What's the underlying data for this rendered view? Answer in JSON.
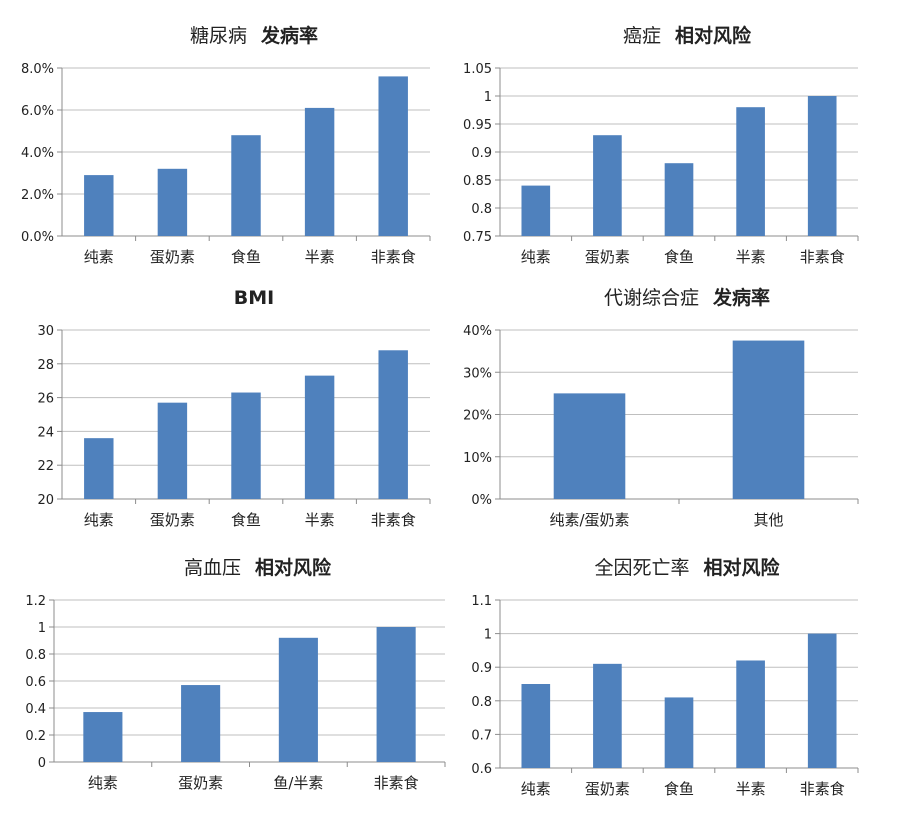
{
  "chart_data": [
    {
      "type": "bar",
      "title_main": "糖尿病",
      "title_emph": "发病率",
      "categories": [
        "纯素",
        "蛋奶素",
        "食鱼",
        "半素",
        "非素食"
      ],
      "values": [
        2.9,
        3.2,
        4.8,
        6.1,
        7.6
      ],
      "ylim": [
        0,
        8
      ],
      "yticks": [
        "0.0%",
        "2.0%",
        "4.0%",
        "6.0%",
        "8.0%"
      ],
      "grid": true
    },
    {
      "type": "bar",
      "title_main": "癌症",
      "title_emph": "相对风险",
      "categories": [
        "纯素",
        "蛋奶素",
        "食鱼",
        "半素",
        "非素食"
      ],
      "values": [
        0.84,
        0.93,
        0.88,
        0.98,
        1.0
      ],
      "ylim": [
        0.75,
        1.05
      ],
      "yticks": [
        "0.75",
        "0.8",
        "0.85",
        "0.9",
        "0.95",
        "1",
        "1.05"
      ],
      "grid": true
    },
    {
      "type": "bar",
      "title_main": "",
      "title_emph": "BMI",
      "categories": [
        "纯素",
        "蛋奶素",
        "食鱼",
        "半素",
        "非素食"
      ],
      "values": [
        23.6,
        25.7,
        26.3,
        27.3,
        28.8
      ],
      "ylim": [
        20,
        30
      ],
      "yticks": [
        "20",
        "22",
        "24",
        "26",
        "28",
        "30"
      ],
      "grid": true
    },
    {
      "type": "bar",
      "title_main": "代谢综合症",
      "title_emph": "发病率",
      "categories": [
        "纯素/蛋奶素",
        "其他"
      ],
      "values": [
        25,
        37.5
      ],
      "ylim": [
        0,
        40
      ],
      "yticks": [
        "0%",
        "10%",
        "20%",
        "30%",
        "40%"
      ],
      "grid": true
    },
    {
      "type": "bar",
      "title_main": "高血压",
      "title_emph": "相对风险",
      "categories": [
        "纯素",
        "蛋奶素",
        "鱼/半素",
        "非素食"
      ],
      "values": [
        0.37,
        0.57,
        0.92,
        1.0
      ],
      "ylim": [
        0,
        1.2
      ],
      "yticks": [
        "0",
        "0.2",
        "0.4",
        "0.6",
        "0.8",
        "1",
        "1.2"
      ],
      "grid": true
    },
    {
      "type": "bar",
      "title_main": "全因死亡率",
      "title_emph": "相对风险",
      "categories": [
        "纯素",
        "蛋奶素",
        "食鱼",
        "半素",
        "非素食"
      ],
      "values": [
        0.85,
        0.91,
        0.81,
        0.92,
        1.0
      ],
      "ylim": [
        0.6,
        1.1
      ],
      "yticks": [
        "0.6",
        "0.7",
        "0.8",
        "0.9",
        "1",
        "1.1"
      ],
      "grid": true
    }
  ],
  "style": {
    "bar_color": "#4F81BD",
    "grid_color": "#BFBFBF",
    "axis_color": "#8C8C8C",
    "text_color": "#222222"
  }
}
